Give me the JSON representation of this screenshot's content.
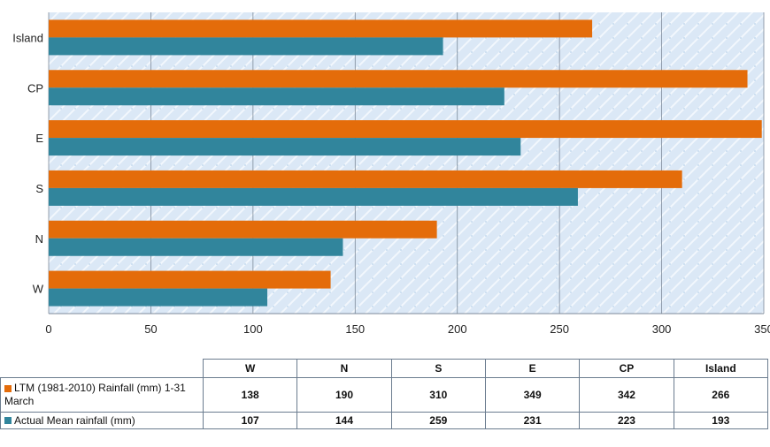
{
  "chart_data": {
    "type": "bar",
    "orientation": "horizontal",
    "categories": [
      "W",
      "N",
      "S",
      "E",
      "CP",
      "Island"
    ],
    "series": [
      {
        "name": "LTM (1981-2010) Rainfall (mm) 1-31 March",
        "color": "#E46C0A",
        "values": [
          138,
          190,
          310,
          349,
          342,
          266
        ]
      },
      {
        "name": "Actual Mean rainfall (mm)",
        "color": "#31859C",
        "values": [
          107,
          144,
          259,
          231,
          223,
          193
        ]
      }
    ],
    "xlim": [
      0,
      350
    ],
    "x_ticks": [
      "0",
      "50",
      "100",
      "150",
      "200",
      "250",
      "300",
      "350"
    ],
    "grid": true,
    "legend": "data-table"
  }
}
